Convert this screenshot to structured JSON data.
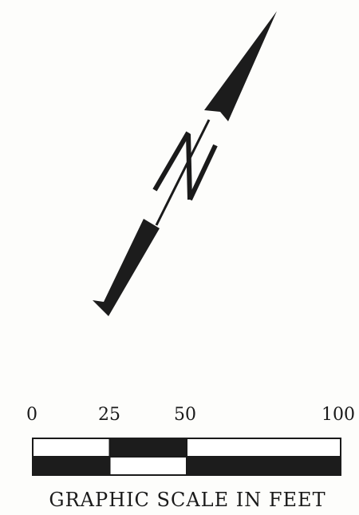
{
  "north_arrow": {
    "icon": "north-arrow-icon",
    "letter": "N"
  },
  "graphic_scale": {
    "tick_labels": [
      "0",
      "25",
      "50",
      "100"
    ],
    "tick_values": [
      0,
      25,
      50,
      100
    ],
    "max_value": 100,
    "title": "GRAPHIC SCALE IN FEET",
    "fill_color": "#1c1c1c"
  }
}
